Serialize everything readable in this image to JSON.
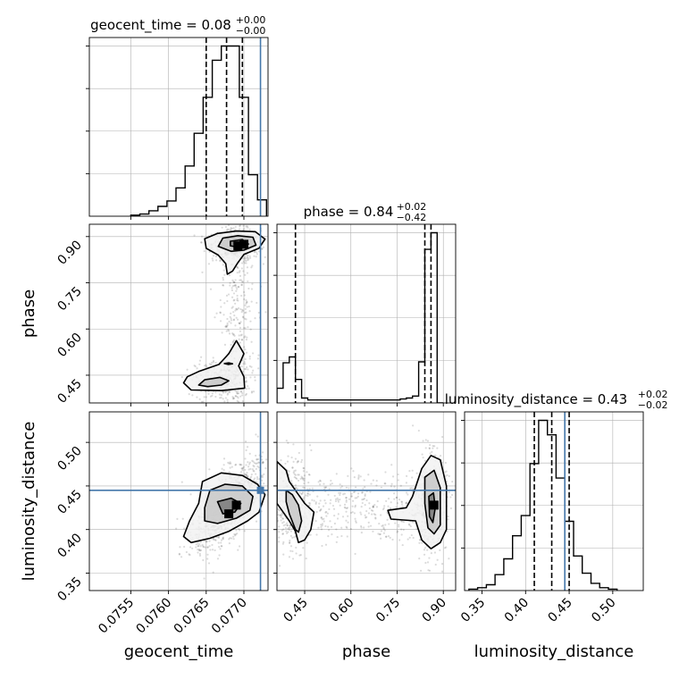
{
  "chart_data": {
    "type": "corner",
    "parameters": [
      "geocent_time",
      "phase",
      "luminosity_distance"
    ],
    "titles": [
      {
        "parameter": "geocent_time",
        "name": "geocent_time",
        "median": "0.08",
        "plus": "+0.00",
        "minus": "−0.00"
      },
      {
        "parameter": "phase",
        "name": "phase",
        "median": "0.84",
        "plus": "+0.02",
        "minus": "−0.42"
      },
      {
        "parameter": "luminosity_distance",
        "name": "luminosity_distance",
        "median": "0.43",
        "plus": "+0.02",
        "minus": "−0.02"
      }
    ],
    "axis_labels": {
      "x": [
        "geocent_time",
        "phase",
        "luminosity_distance"
      ],
      "y": [
        "phase",
        "luminosity_distance"
      ]
    },
    "ranges": {
      "geocent_time": [
        0.07495,
        0.07732
      ],
      "phase": [
        0.36,
        0.94
      ],
      "luminosity_distance": [
        0.33,
        0.535
      ]
    },
    "ticks": {
      "geocent_time": [
        "0.0755",
        "0.0760",
        "0.0765",
        "0.0770"
      ],
      "phase": [
        "0.45",
        "0.60",
        "0.75",
        "0.90"
      ],
      "luminosity_distance": [
        "0.35",
        "0.40",
        "0.45",
        "0.50"
      ]
    },
    "truths": {
      "geocent_time": 0.07722,
      "luminosity_distance": 0.445
    },
    "quantiles": {
      "geocent_time": [
        0.0765,
        0.07677,
        0.07698
      ],
      "phase": [
        0.42,
        0.84,
        0.86
      ],
      "luminosity_distance": [
        0.41,
        0.43,
        0.45
      ]
    },
    "histograms": {
      "geocent_time": {
        "edges": [
          0.0755,
          0.07562,
          0.07574,
          0.07586,
          0.07598,
          0.0761,
          0.07622,
          0.07634,
          0.07646,
          0.07658,
          0.0767,
          0.07682,
          0.07694,
          0.07706,
          0.07718,
          0.0773
        ],
        "counts": [
          1,
          2,
          5,
          9,
          14,
          26,
          46,
          76,
          109,
          143,
          156,
          156,
          109,
          38,
          15
        ]
      },
      "phase": {
        "edges": [
          0.36,
          0.38,
          0.4,
          0.42,
          0.44,
          0.46,
          0.48,
          0.5,
          0.52,
          0.54,
          0.56,
          0.58,
          0.6,
          0.62,
          0.64,
          0.66,
          0.68,
          0.7,
          0.72,
          0.74,
          0.76,
          0.78,
          0.8,
          0.82,
          0.84,
          0.86,
          0.88,
          0.9
        ],
        "counts": [
          15,
          41,
          47,
          24,
          5,
          3,
          3,
          3,
          3,
          3,
          3,
          3,
          3,
          3,
          3,
          3,
          3,
          3,
          3,
          3,
          4,
          5,
          7,
          42,
          157,
          174,
          0
        ]
      },
      "luminosity_distance": {
        "edges": [
          0.335,
          0.345,
          0.355,
          0.365,
          0.375,
          0.385,
          0.395,
          0.405,
          0.415,
          0.425,
          0.435,
          0.445,
          0.455,
          0.465,
          0.475,
          0.485,
          0.495,
          0.505
        ],
        "counts": [
          1,
          2,
          4,
          11,
          22,
          38,
          52,
          88,
          118,
          108,
          78,
          48,
          24,
          12,
          5,
          2,
          1
        ]
      }
    },
    "contours": [
      {
        "x": "geocent_time",
        "y": "phase",
        "levels": [
          [
            [
              0.07665,
              0.91
            ],
            [
              0.0769,
              0.918
            ],
            [
              0.07715,
              0.916
            ],
            [
              0.07728,
              0.892
            ],
            [
              0.0772,
              0.862
            ],
            [
              0.077,
              0.842
            ],
            [
              0.07692,
              0.815
            ],
            [
              0.07685,
              0.788
            ],
            [
              0.07678,
              0.778
            ],
            [
              0.07676,
              0.812
            ],
            [
              0.07666,
              0.84
            ],
            [
              0.0765,
              0.862
            ],
            [
              0.07648,
              0.893
            ]
          ],
          [
            [
              0.07672,
              0.895
            ],
            [
              0.07692,
              0.903
            ],
            [
              0.07712,
              0.898
            ],
            [
              0.07716,
              0.872
            ],
            [
              0.077,
              0.856
            ],
            [
              0.07683,
              0.852
            ],
            [
              0.07666,
              0.868
            ]
          ],
          [
            [
              0.07682,
              0.885
            ],
            [
              0.07698,
              0.89
            ],
            [
              0.07706,
              0.876
            ],
            [
              0.07693,
              0.865
            ],
            [
              0.07682,
              0.87
            ]
          ],
          [
            [
              0.07625,
              0.445
            ],
            [
              0.0764,
              0.462
            ],
            [
              0.07667,
              0.485
            ],
            [
              0.0768,
              0.52
            ],
            [
              0.0769,
              0.562
            ],
            [
              0.077,
              0.52
            ],
            [
              0.07693,
              0.48
            ],
            [
              0.077,
              0.445
            ],
            [
              0.07701,
              0.408
            ],
            [
              0.0767,
              0.4
            ],
            [
              0.0763,
              0.402
            ],
            [
              0.0762,
              0.425
            ]
          ],
          [
            [
              0.0764,
              0.418
            ],
            [
              0.07648,
              0.435
            ],
            [
              0.07668,
              0.443
            ],
            [
              0.0768,
              0.432
            ],
            [
              0.0767,
              0.418
            ],
            [
              0.07652,
              0.413
            ]
          ],
          [
            [
              0.07674,
              0.488
            ],
            [
              0.0768,
              0.49
            ],
            [
              0.07685,
              0.487
            ],
            [
              0.07679,
              0.485
            ]
          ]
        ],
        "peaks": [
          [
            0.077,
            0.875
          ],
          [
            0.07692,
            0.87
          ]
        ]
      },
      {
        "x": "geocent_time",
        "y": "luminosity_distance",
        "levels": [
          [
            [
              0.07645,
              0.455
            ],
            [
              0.0767,
              0.465
            ],
            [
              0.07698,
              0.462
            ],
            [
              0.07718,
              0.452
            ],
            [
              0.07728,
              0.44
            ],
            [
              0.0772,
              0.42
            ],
            [
              0.07705,
              0.41
            ],
            [
              0.0768,
              0.398
            ],
            [
              0.07655,
              0.39
            ],
            [
              0.0763,
              0.385
            ],
            [
              0.0762,
              0.392
            ],
            [
              0.07628,
              0.41
            ],
            [
              0.0764,
              0.43
            ]
          ],
          [
            [
              0.07655,
              0.445
            ],
            [
              0.07675,
              0.452
            ],
            [
              0.07698,
              0.45
            ],
            [
              0.07712,
              0.438
            ],
            [
              0.07708,
              0.422
            ],
            [
              0.0769,
              0.413
            ],
            [
              0.07665,
              0.407
            ],
            [
              0.07648,
              0.41
            ],
            [
              0.07648,
              0.425
            ]
          ],
          [
            [
              0.07665,
              0.432
            ],
            [
              0.07683,
              0.436
            ],
            [
              0.07696,
              0.43
            ],
            [
              0.07688,
              0.42
            ],
            [
              0.07672,
              0.418
            ]
          ]
        ],
        "peaks": [
          [
            0.0768,
            0.418
          ],
          [
            0.0769,
            0.428
          ]
        ]
      },
      {
        "x": "phase",
        "y": "luminosity_distance",
        "levels": [
          [
            [
              0.36,
              0.478
            ],
            [
              0.39,
              0.468
            ],
            [
              0.4,
              0.455
            ],
            [
              0.43,
              0.44
            ],
            [
              0.45,
              0.43
            ],
            [
              0.48,
              0.42
            ],
            [
              0.47,
              0.4
            ],
            [
              0.45,
              0.388
            ],
            [
              0.43,
              0.385
            ],
            [
              0.42,
              0.398
            ],
            [
              0.4,
              0.41
            ],
            [
              0.38,
              0.42
            ],
            [
              0.36,
              0.43
            ]
          ],
          [
            [
              0.39,
              0.445
            ],
            [
              0.41,
              0.44
            ],
            [
              0.43,
              0.428
            ],
            [
              0.44,
              0.41
            ],
            [
              0.43,
              0.397
            ],
            [
              0.42,
              0.4
            ],
            [
              0.4,
              0.418
            ],
            [
              0.39,
              0.432
            ]
          ],
          [
            [
              0.72,
              0.422
            ],
            [
              0.78,
              0.425
            ],
            [
              0.8,
              0.438
            ],
            [
              0.83,
              0.47
            ],
            [
              0.86,
              0.485
            ],
            [
              0.89,
              0.48
            ],
            [
              0.91,
              0.45
            ],
            [
              0.91,
              0.4
            ],
            [
              0.89,
              0.385
            ],
            [
              0.86,
              0.378
            ],
            [
              0.83,
              0.388
            ],
            [
              0.81,
              0.41
            ],
            [
              0.73,
              0.412
            ]
          ],
          [
            [
              0.84,
              0.46
            ],
            [
              0.87,
              0.468
            ],
            [
              0.89,
              0.448
            ],
            [
              0.89,
              0.405
            ],
            [
              0.87,
              0.395
            ],
            [
              0.85,
              0.402
            ],
            [
              0.84,
              0.43
            ]
          ],
          [
            [
              0.853,
              0.438
            ],
            [
              0.868,
              0.442
            ],
            [
              0.874,
              0.425
            ],
            [
              0.866,
              0.408
            ],
            [
              0.855,
              0.415
            ]
          ]
        ],
        "peaks": [
          [
            0.87,
            0.428
          ]
        ]
      }
    ]
  }
}
